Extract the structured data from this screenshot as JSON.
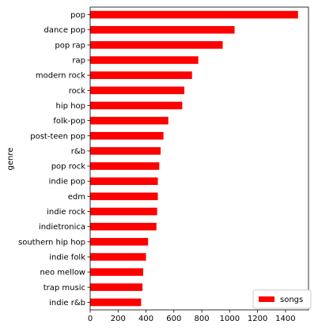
{
  "chart_data": {
    "type": "bar",
    "orientation": "horizontal",
    "title": "",
    "xlabel": "",
    "ylabel": "genre",
    "categories": [
      "pop",
      "dance pop",
      "pop rap",
      "rap",
      "modern rock",
      "rock",
      "hip hop",
      "folk-pop",
      "post-teen pop",
      "r&b",
      "pop rock",
      "indie pop",
      "edm",
      "indie rock",
      "indietronica",
      "southern hip hop",
      "indie folk",
      "neo mellow",
      "trap music",
      "indie r&b"
    ],
    "series": [
      {
        "name": "songs",
        "color": "#ff0000",
        "values": [
          1490,
          1035,
          950,
          775,
          730,
          675,
          660,
          560,
          525,
          505,
          495,
          485,
          485,
          480,
          475,
          415,
          400,
          380,
          375,
          365
        ]
      }
    ],
    "xlim": [
      0,
      1565
    ],
    "xticks": [
      0,
      200,
      400,
      600,
      800,
      1000,
      1200,
      1400
    ],
    "grid": false,
    "legend_position": "bottom-right"
  }
}
